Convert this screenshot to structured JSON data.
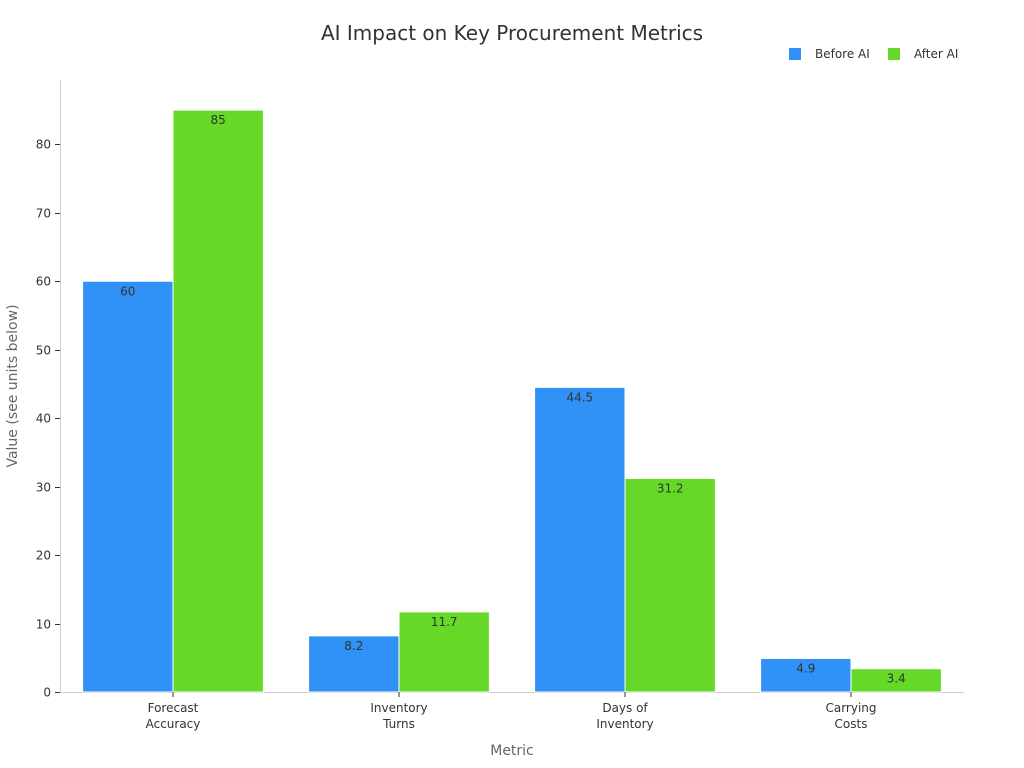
{
  "chart_data": {
    "type": "bar",
    "title": "AI Impact on Key Procurement Metrics",
    "xlabel": "Metric",
    "ylabel": "Value (see units below)",
    "categories": [
      [
        "Forecast",
        "Accuracy"
      ],
      [
        "Inventory",
        "Turns"
      ],
      [
        "Days of",
        "Inventory"
      ],
      [
        "Carrying",
        "Costs"
      ]
    ],
    "series": [
      {
        "name": "Before AI",
        "color": "#3091f7",
        "values": [
          60,
          8.2,
          44.5,
          4.9
        ],
        "labels": [
          "60",
          "8.2",
          "44.5",
          "4.9"
        ]
      },
      {
        "name": "After AI",
        "color": "#66d928",
        "values": [
          85,
          11.7,
          31.2,
          3.4
        ],
        "labels": [
          "85",
          "11.7",
          "31.2",
          "3.4"
        ]
      }
    ],
    "ylim": [
      0,
      89.4
    ],
    "yticks": [
      0,
      10,
      20,
      30,
      40,
      50,
      60,
      70,
      80
    ],
    "grid": false,
    "legend_position": "top-right"
  }
}
